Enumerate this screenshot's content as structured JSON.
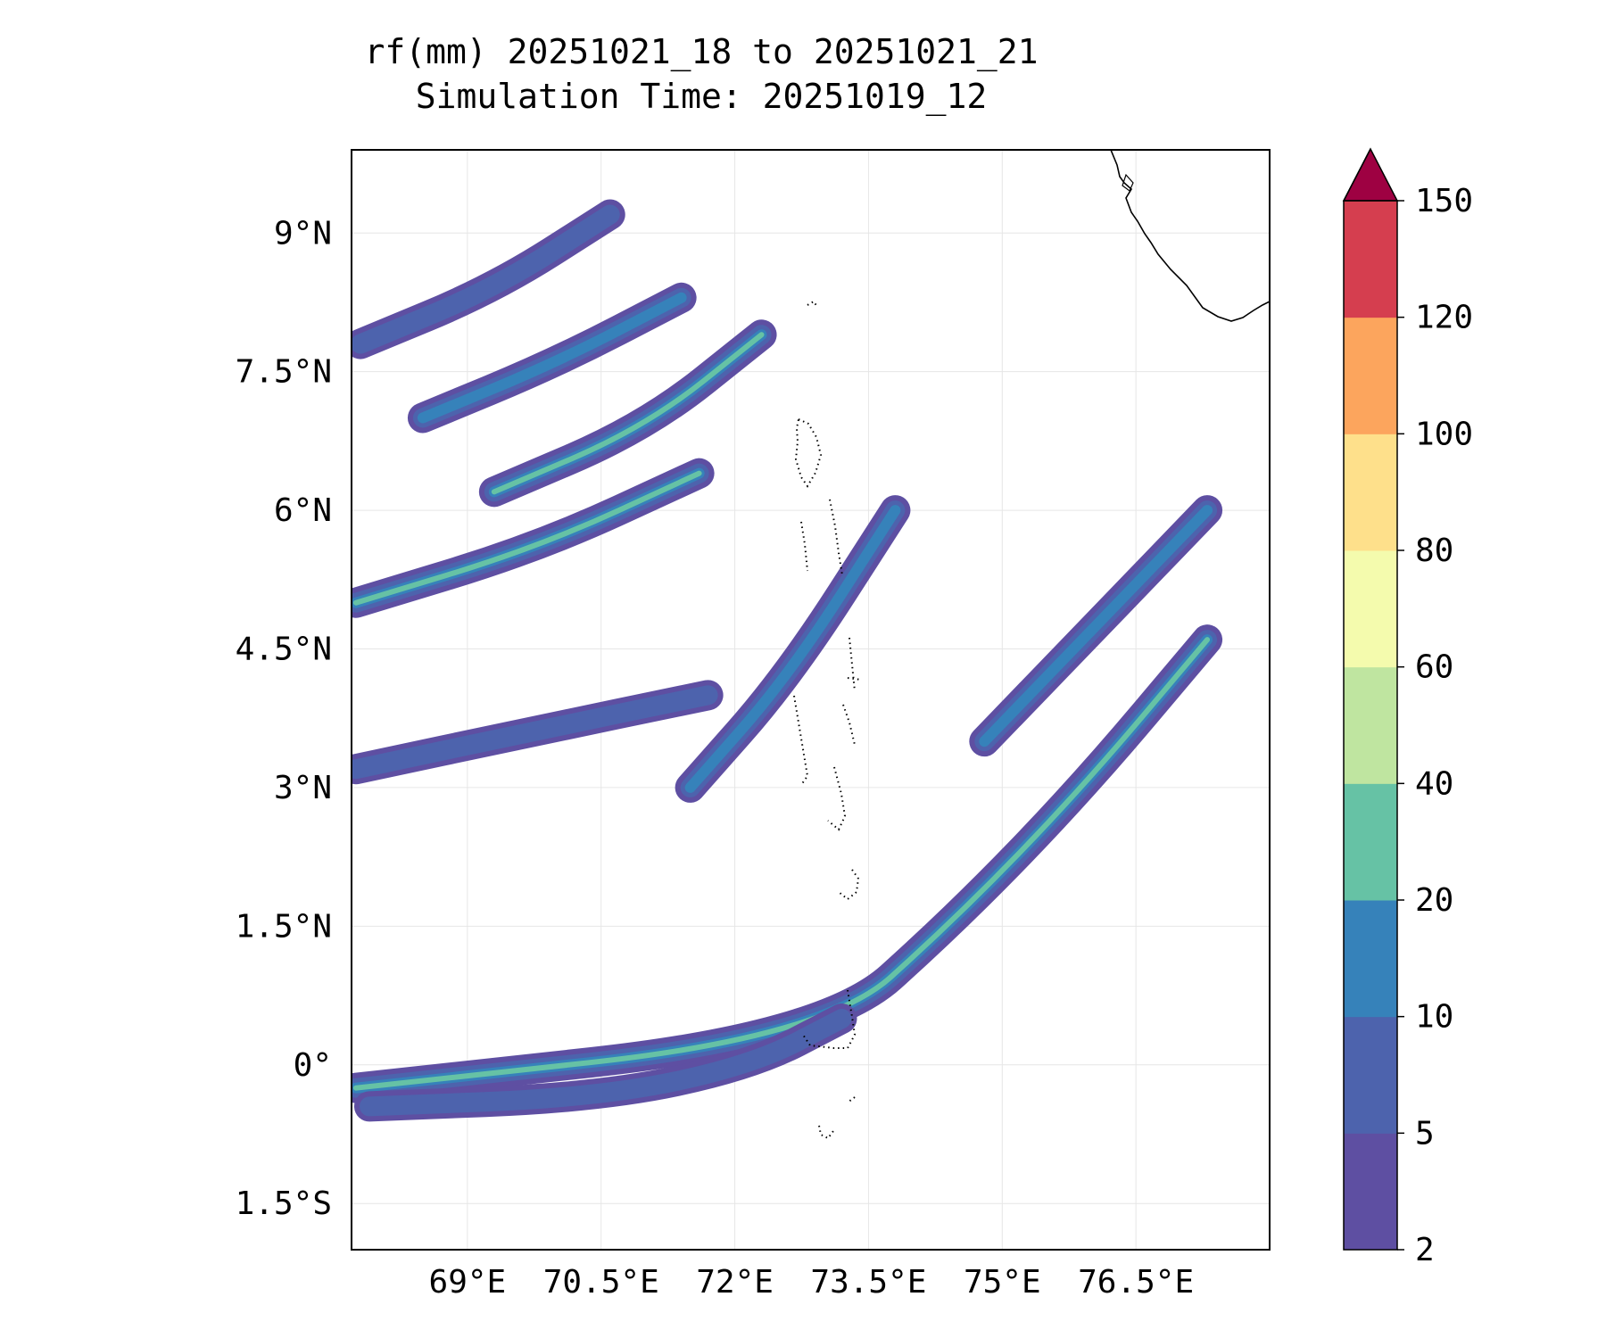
{
  "title": {
    "line1": "rf(mm) 20251021_18 to 20251021_21",
    "line2": "Simulation Time: 20251019_12"
  },
  "map": {
    "lon_range": [
      67.7,
      78.0
    ],
    "lat_range": [
      -2.0,
      9.9
    ],
    "x_ticks": [
      {
        "value": 69.0,
        "label": "69°E"
      },
      {
        "value": 70.5,
        "label": "70.5°E"
      },
      {
        "value": 72.0,
        "label": "72°E"
      },
      {
        "value": 73.5,
        "label": "73.5°E"
      },
      {
        "value": 75.0,
        "label": "75°E"
      },
      {
        "value": 76.5,
        "label": "76.5°E"
      }
    ],
    "y_ticks": [
      {
        "value": 9.0,
        "label": "9°N"
      },
      {
        "value": 7.5,
        "label": "7.5°N"
      },
      {
        "value": 6.0,
        "label": "6°N"
      },
      {
        "value": 4.5,
        "label": "4.5°N"
      },
      {
        "value": 3.0,
        "label": "3°N"
      },
      {
        "value": 1.5,
        "label": "1.5°N"
      },
      {
        "value": 0.0,
        "label": "0°"
      },
      {
        "value": -1.5,
        "label": "1.5°S"
      }
    ],
    "gridlines": true,
    "features": [
      "India coastline (top-right)",
      "Maldives atolls (dotted)"
    ]
  },
  "colorbar": {
    "levels": [
      2,
      5,
      10,
      20,
      40,
      60,
      80,
      100,
      120,
      150
    ],
    "labels": [
      "2",
      "5",
      "10",
      "20",
      "40",
      "60",
      "80",
      "100",
      "120",
      "150"
    ],
    "colors": [
      "#5e4fa2",
      "#4d63ad",
      "#3682ba",
      "#66c2a5",
      "#bfe5a0",
      "#f4fbad",
      "#fee08b",
      "#fca55d",
      "#d53e4f"
    ],
    "extend_color": "#9e0142",
    "extend": "max"
  },
  "rain_bands": [
    {
      "name": "equatorial-band",
      "lon": [
        67.75,
        73.0,
        74.5,
        75.9,
        77.3
      ],
      "lat": [
        -0.25,
        0.3,
        1.6,
        3.0,
        4.6
      ],
      "max_level": 40
    },
    {
      "name": "southern-arc",
      "lon": [
        67.9,
        70.5,
        72.2,
        73.2
      ],
      "lat": [
        -0.45,
        -0.35,
        0.0,
        0.5
      ],
      "max_level": 10
    },
    {
      "name": "northwest-streak-1",
      "lon": [
        67.75,
        69.8,
        71.6
      ],
      "lat": [
        5.0,
        5.6,
        6.4
      ],
      "max_level": 40
    },
    {
      "name": "northwest-streak-2",
      "lon": [
        69.3,
        71.0,
        72.3
      ],
      "lat": [
        6.2,
        6.9,
        7.9
      ],
      "max_level": 40
    },
    {
      "name": "northwest-streak-3",
      "lon": [
        68.5,
        70.0,
        71.4
      ],
      "lat": [
        7.0,
        7.6,
        8.3
      ],
      "max_level": 20
    },
    {
      "name": "northwest-streak-4",
      "lon": [
        67.8,
        69.3,
        70.6
      ],
      "lat": [
        7.8,
        8.4,
        9.2
      ],
      "max_level": 10
    },
    {
      "name": "central-convection",
      "lon": [
        71.5,
        72.6,
        73.8
      ],
      "lat": [
        3.0,
        4.2,
        6.0
      ],
      "max_level": 20
    },
    {
      "name": "east-cluster",
      "lon": [
        74.8,
        76.1,
        77.3
      ],
      "lat": [
        3.5,
        4.8,
        6.0
      ],
      "max_level": 20
    },
    {
      "name": "west-bands",
      "lon": [
        67.75,
        69.7,
        71.7
      ],
      "lat": [
        3.2,
        3.6,
        4.0
      ],
      "max_level": 10
    }
  ]
}
